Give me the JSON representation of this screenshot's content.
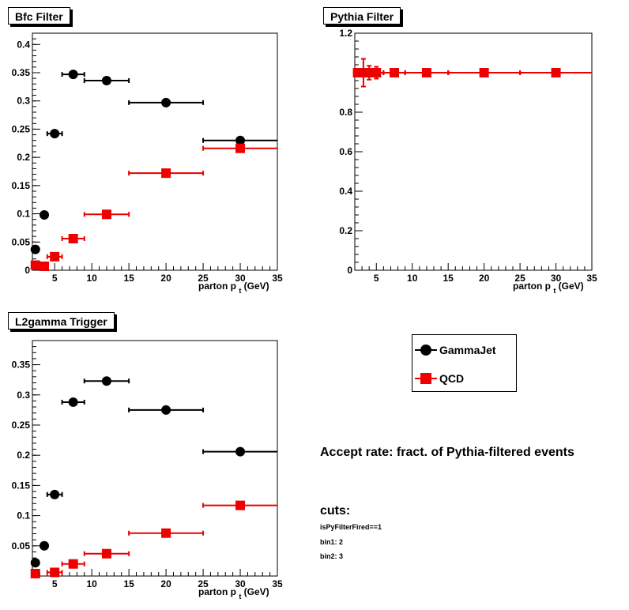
{
  "colors": {
    "GammaJet": "#000000",
    "QCD": "#ee0000"
  },
  "legend": [
    {
      "name": "GammaJet",
      "marker": "circle"
    },
    {
      "name": "QCD",
      "marker": "square"
    }
  ],
  "notes": {
    "accept_rate": "Accept rate: fract. of Pythia-filtered events",
    "cuts_title": "cuts:",
    "cut_lines": [
      "isPyFilterFired==1",
      "bin1: 2",
      "bin2: 3"
    ]
  },
  "chart_data": [
    {
      "id": "bfc",
      "type": "scatter",
      "title": "Bfc Filter",
      "xlabel": "parton p_t (GeV)",
      "ylabel": "",
      "xlim": [
        2,
        35
      ],
      "ylim": [
        0,
        0.42
      ],
      "xticks": [
        5,
        10,
        15,
        20,
        25,
        30,
        35
      ],
      "xticklabels": [
        "5",
        "10",
        "15",
        "20",
        "25",
        "30",
        "35"
      ],
      "yticks": [
        0,
        0.05,
        0.1,
        0.15,
        0.2,
        0.25,
        0.3,
        0.35,
        0.4
      ],
      "yticklabels": [
        "0",
        "0.05",
        "0.1",
        "0.15",
        "0.2",
        "0.25",
        "0.3",
        "0.35",
        "0.4"
      ],
      "grid": false,
      "series": [
        {
          "name": "GammaJet",
          "marker": "circle",
          "x": [
            2.4,
            3.6,
            5,
            7.5,
            12,
            20,
            30
          ],
          "xerr_low": [
            0,
            0,
            1,
            1.5,
            3,
            5,
            5
          ],
          "xerr_high": [
            0,
            0,
            1,
            1.5,
            3,
            5,
            5
          ],
          "y": [
            0.037,
            0.098,
            0.242,
            0.347,
            0.336,
            0.297,
            0.23
          ],
          "yerr": [
            0,
            0,
            0,
            0,
            0,
            0,
            0
          ]
        },
        {
          "name": "QCD",
          "marker": "square",
          "x": [
            2.4,
            3.6,
            5,
            7.5,
            12,
            20,
            30
          ],
          "xerr_low": [
            0,
            0,
            1,
            1.5,
            3,
            5,
            5
          ],
          "xerr_high": [
            0,
            0,
            1,
            1.5,
            3,
            5,
            5
          ],
          "y": [
            0.009,
            0.007,
            0.024,
            0.056,
            0.099,
            0.172,
            0.216
          ],
          "yerr": [
            0,
            0,
            0.003,
            0,
            0,
            0,
            0
          ]
        }
      ]
    },
    {
      "id": "pythia",
      "type": "scatter",
      "title": "Pythia Filter",
      "xlabel": "parton p_t (GeV)",
      "ylabel": "",
      "xlim": [
        2,
        35
      ],
      "ylim": [
        0,
        1.2
      ],
      "xticks": [
        5,
        10,
        15,
        20,
        25,
        30,
        35
      ],
      "xticklabels": [
        "5",
        "10",
        "15",
        "20",
        "25",
        "30",
        "35"
      ],
      "yticks": [
        0,
        0.2,
        0.4,
        0.6,
        0.8,
        1.2
      ],
      "yticklabels": [
        "0",
        "0.2",
        "0.4",
        "0.6",
        "0.8",
        "1.2"
      ],
      "grid": false,
      "series": [
        {
          "name": "GammaJet",
          "marker": "circle",
          "x": [
            2.4,
            3.2,
            4,
            5,
            7.5,
            12,
            20,
            30
          ],
          "xerr_low": [
            0,
            0,
            0,
            1,
            1.5,
            3,
            5,
            5
          ],
          "xerr_high": [
            0,
            0,
            0,
            1,
            1.5,
            3,
            5,
            5
          ],
          "y": [
            1,
            1,
            1,
            1,
            1,
            1,
            1,
            1
          ],
          "yerr": [
            0,
            0,
            0,
            0,
            0,
            0,
            0,
            0
          ]
        },
        {
          "name": "QCD",
          "marker": "square",
          "x": [
            2.4,
            3.2,
            4,
            5,
            7.5,
            12,
            20,
            30
          ],
          "xerr_low": [
            0.4,
            0.4,
            0.4,
            1,
            1.5,
            3,
            5,
            5
          ],
          "xerr_high": [
            0.4,
            0.4,
            0.4,
            1,
            1.5,
            3,
            5,
            5
          ],
          "y": [
            1,
            1,
            1,
            1,
            1,
            1,
            1,
            1
          ],
          "yerr": [
            0.02,
            0.07,
            0.035,
            0.03,
            0,
            0,
            0,
            0
          ]
        }
      ]
    },
    {
      "id": "l2",
      "type": "scatter",
      "title": "L2gamma Trigger",
      "xlabel": "parton p_t (GeV)",
      "ylabel": "",
      "xlim": [
        2,
        35
      ],
      "ylim": [
        0,
        0.39
      ],
      "xticks": [
        5,
        10,
        15,
        20,
        25,
        30,
        35
      ],
      "xticklabels": [
        "5",
        "10",
        "15",
        "20",
        "25",
        "30",
        "35"
      ],
      "yticks": [
        0.05,
        0.1,
        0.15,
        0.2,
        0.25,
        0.3,
        0.35
      ],
      "yticklabels": [
        "0.05",
        "0.1",
        "0.15",
        "0.2",
        "0.25",
        "0.3",
        "0.35"
      ],
      "grid": false,
      "series": [
        {
          "name": "GammaJet",
          "marker": "circle",
          "x": [
            2.4,
            3.6,
            5,
            7.5,
            12,
            20,
            30
          ],
          "xerr_low": [
            0,
            0,
            1,
            1.5,
            3,
            5,
            5
          ],
          "xerr_high": [
            0,
            0,
            1,
            1.5,
            3,
            5,
            5
          ],
          "y": [
            0.022,
            0.05,
            0.135,
            0.288,
            0.323,
            0.275,
            0.206
          ],
          "yerr": [
            0,
            0,
            0,
            0,
            0,
            0,
            0
          ]
        },
        {
          "name": "QCD",
          "marker": "square",
          "x": [
            2.4,
            5,
            7.5,
            12,
            20,
            30
          ],
          "xerr_low": [
            0,
            1,
            1.5,
            3,
            5,
            5
          ],
          "xerr_high": [
            0,
            1,
            1.5,
            3,
            5,
            5
          ],
          "y": [
            0.004,
            0.006,
            0.02,
            0.037,
            0.071,
            0.117
          ],
          "yerr": [
            0,
            0,
            0,
            0,
            0,
            0
          ]
        }
      ]
    }
  ]
}
